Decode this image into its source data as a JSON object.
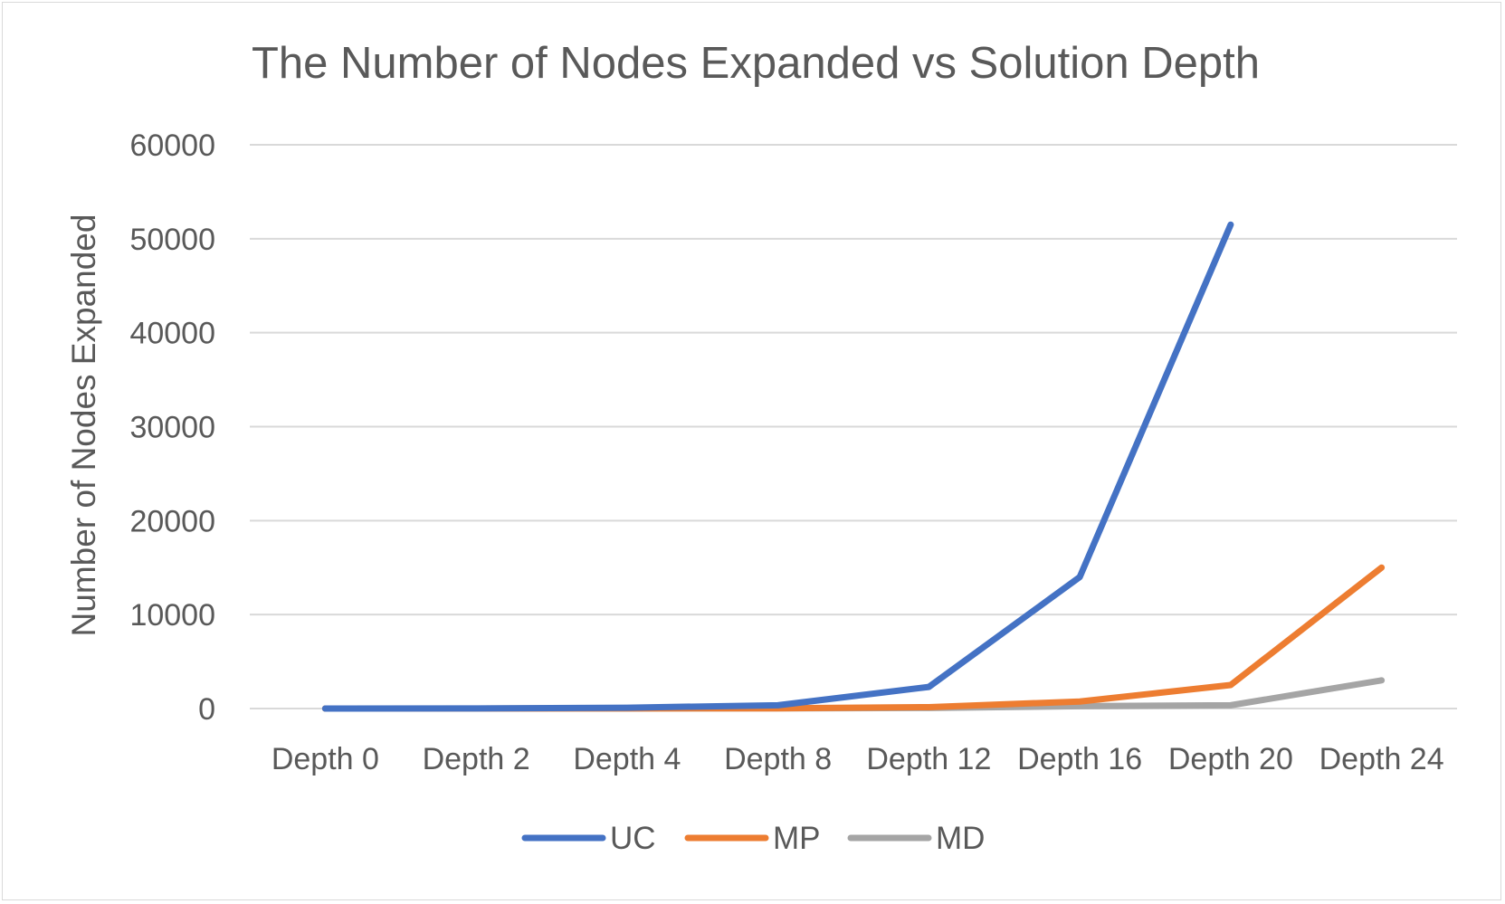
{
  "chart_data": {
    "type": "line",
    "title": "The Number of Nodes Expanded vs Solution Depth",
    "xlabel": "",
    "ylabel": "Number of Nodes Expanded",
    "categories": [
      "Depth 0",
      "Depth 2",
      "Depth 4",
      "Depth 8",
      "Depth 12",
      "Depth 16",
      "Depth 20",
      "Depth 24"
    ],
    "ylim": [
      0,
      60000
    ],
    "yticks": [
      "0",
      "10000",
      "20000",
      "30000",
      "40000",
      "50000",
      "60000"
    ],
    "grid": true,
    "legend_position": "bottom",
    "series": [
      {
        "name": "UC",
        "color": "#4472c4",
        "values": [
          1,
          10,
          90,
          350,
          2300,
          14000,
          51500,
          null
        ]
      },
      {
        "name": "MP",
        "color": "#ed7d31",
        "values": [
          1,
          3,
          10,
          30,
          150,
          750,
          2500,
          15000
        ]
      },
      {
        "name": "MD",
        "color": "#a5a5a5",
        "values": [
          1,
          3,
          8,
          20,
          60,
          250,
          350,
          3000
        ]
      }
    ]
  }
}
